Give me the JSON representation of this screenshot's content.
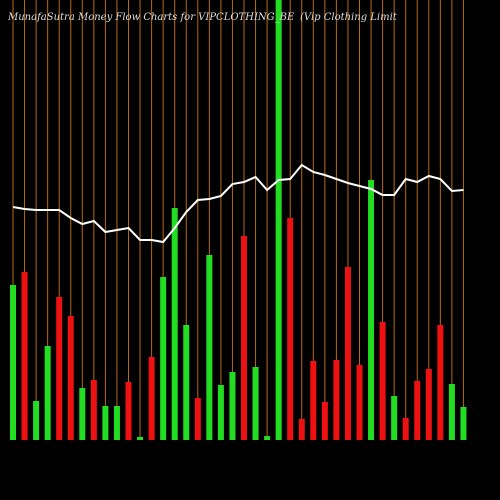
{
  "chart_data": {
    "type": "bar",
    "title": "MunafaSutra  Money Flow  Charts for VIPCLOTHING_BE",
    "subtitle": "(Vip Clothing Limit",
    "ylim": [
      0,
      440
    ],
    "values": [
      155,
      168,
      39,
      94,
      143,
      124,
      52,
      60,
      34,
      34,
      58,
      3,
      83,
      163,
      232,
      115,
      42,
      185,
      55,
      68,
      204,
      73,
      4,
      440,
      222,
      21,
      79,
      38,
      80,
      173,
      75,
      260,
      118,
      44,
      22,
      59,
      71,
      115,
      56,
      33
    ],
    "colors": [
      "#22dd22",
      "#ee1111",
      "#22dd22",
      "#22dd22",
      "#ee1111",
      "#ee1111",
      "#22dd22",
      "#ee1111",
      "#22dd22",
      "#22dd22",
      "#ee1111",
      "#22dd22",
      "#ee1111",
      "#22dd22",
      "#22dd22",
      "#22dd22",
      "#ee1111",
      "#22dd22",
      "#22dd22",
      "#22dd22",
      "#ee1111",
      "#22dd22",
      "#22dd22",
      "#22dd22",
      "#ee1111",
      "#ee1111",
      "#ee1111",
      "#ee1111",
      "#ee1111",
      "#ee1111",
      "#ee1111",
      "#22dd22",
      "#ee1111",
      "#22dd22",
      "#ee1111",
      "#ee1111",
      "#ee1111",
      "#ee1111",
      "#22dd22",
      "#22dd22"
    ],
    "line": [
      233,
      231,
      230,
      230,
      230,
      222,
      216,
      219,
      208,
      210,
      212,
      200,
      200,
      198,
      212,
      228,
      240,
      241,
      244,
      256,
      258,
      263,
      250,
      260,
      261,
      275,
      268,
      265,
      261,
      257,
      254,
      251,
      245,
      245,
      261,
      258,
      264,
      261,
      249,
      250
    ],
    "line_color": "#ffffff",
    "grid_color": "#b86a10"
  }
}
